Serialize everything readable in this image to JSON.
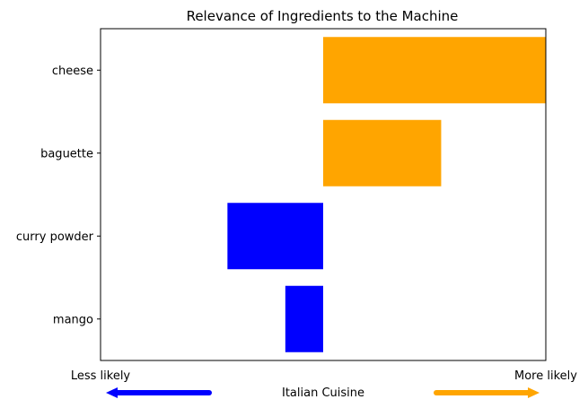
{
  "chart_data": {
    "type": "bar",
    "orientation": "horizontal",
    "title": "Relevance of Ingredients to the Machine",
    "xlabel": "Italian Cuisine",
    "ylabel": "",
    "categories": [
      "cheese",
      "baguette",
      "curry powder",
      "mango"
    ],
    "values": [
      1.0,
      0.53,
      -0.43,
      -0.17
    ],
    "xlim": [
      -1.0,
      1.0
    ],
    "x_tick_labels": {
      "left": "Less likely",
      "right": "More likely"
    },
    "grid": false,
    "colors": {
      "positive": "#FFA500",
      "negative": "#0000FF"
    },
    "arrows": {
      "left_color": "#0000FF",
      "right_color": "#FFA500"
    }
  }
}
